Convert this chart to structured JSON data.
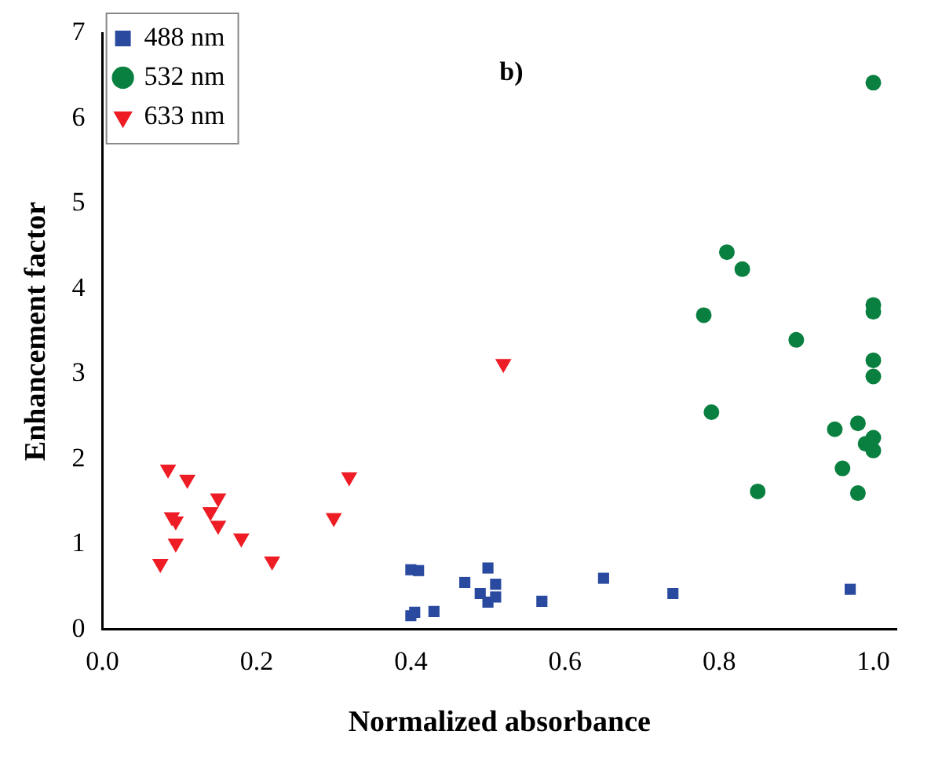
{
  "chart_data": {
    "type": "scatter",
    "xlabel": "Normalized absorbance",
    "ylabel": "Enhancement factor",
    "annotations": [
      "b)"
    ],
    "xlim": [
      0,
      1.03
    ],
    "ylim": [
      0,
      7
    ],
    "xticks": [
      {
        "value": 0,
        "label": "0.0"
      },
      {
        "value": 0.2,
        "label": "0.2"
      },
      {
        "value": 0.4,
        "label": "0.4"
      },
      {
        "value": 0.6,
        "label": "0.6"
      },
      {
        "value": 0.8,
        "label": "0.8"
      },
      {
        "value": 1,
        "label": "1.0"
      }
    ],
    "yticks": [
      0,
      1,
      2,
      3,
      4,
      5,
      6,
      7
    ],
    "grid": false,
    "legend": "top left",
    "series": [
      {
        "name": "488 nm",
        "color": "#2a4aa0",
        "marker": "square",
        "x": [
          0.4,
          0.41,
          0.4,
          0.405,
          0.43,
          0.47,
          0.5,
          0.49,
          0.5,
          0.51,
          0.51,
          0.57,
          0.65,
          0.74,
          0.97
        ],
        "values": [
          0.7,
          0.69,
          0.16,
          0.2,
          0.21,
          0.55,
          0.72,
          0.42,
          0.32,
          0.38,
          0.53,
          0.33,
          0.6,
          0.42,
          0.47
        ]
      },
      {
        "name": "532 nm",
        "color": "#0a8040",
        "marker": "circle",
        "x": [
          1.0,
          0.81,
          0.83,
          0.78,
          0.9,
          1.0,
          1.0,
          1.0,
          1.0,
          0.79,
          0.95,
          0.98,
          1.0,
          0.99,
          1.0,
          0.96,
          0.85,
          0.98
        ],
        "values": [
          6.42,
          4.43,
          4.23,
          3.69,
          3.4,
          3.81,
          3.73,
          3.16,
          2.97,
          2.55,
          2.35,
          2.42,
          2.25,
          2.18,
          2.1,
          1.89,
          1.62,
          1.6
        ]
      },
      {
        "name": "633 nm",
        "color": "#ee1c24",
        "marker": "triangle",
        "x": [
          0.085,
          0.11,
          0.15,
          0.14,
          0.09,
          0.095,
          0.15,
          0.18,
          0.095,
          0.075,
          0.22,
          0.3,
          0.32,
          0.52
        ],
        "values": [
          1.88,
          1.76,
          1.54,
          1.38,
          1.32,
          1.27,
          1.22,
          1.07,
          1.01,
          0.77,
          0.8,
          1.31,
          1.79,
          3.12
        ]
      }
    ]
  }
}
